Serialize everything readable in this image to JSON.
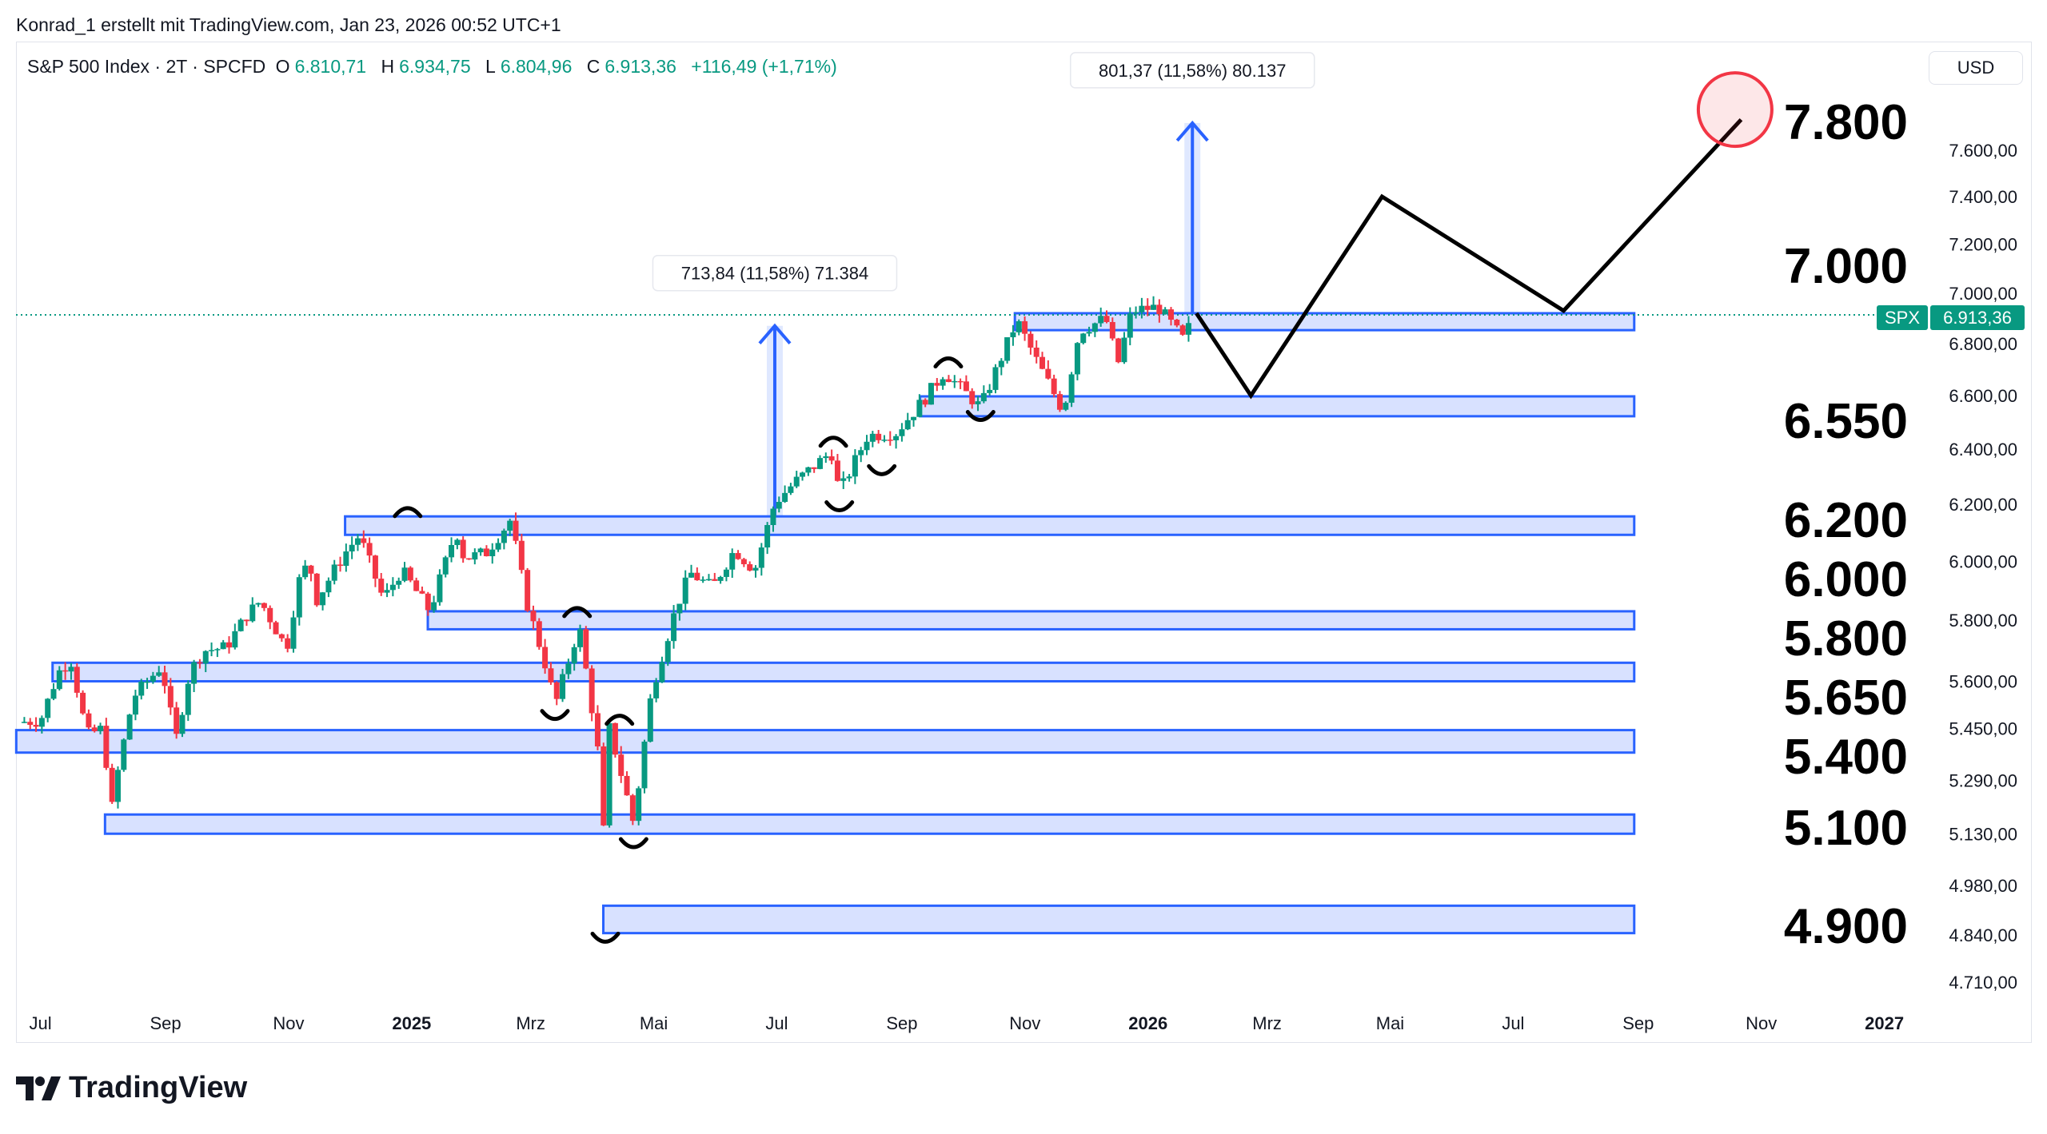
{
  "caption": "Konrad_1 erstellt mit TradingView.com, Jan 23, 2026 00:52 UTC+1",
  "legend": {
    "symbol": "S&P 500 Index · 2T · SPCFD",
    "open_label": "O",
    "open": "6.810,71",
    "high_label": "H",
    "high": "6.934,75",
    "low_label": "L",
    "low": "6.804,96",
    "close_label": "C",
    "close": "6.913,36",
    "change": "+116,49 (+1,71%)"
  },
  "currency": "USD",
  "brand": "TradingView",
  "colors": {
    "up": "#089981",
    "down": "#f23645",
    "zone_border": "#2962ff",
    "zone_fill": "#d1dcff",
    "projection": "#000000",
    "target_circle": "#f23645"
  },
  "chart_data": {
    "type": "candlestick",
    "interval": "2T",
    "y_scale": "log",
    "ylim": [
      4650,
      7900
    ],
    "x_range": [
      "2024-06-19",
      "2027-01-20"
    ],
    "grid": false,
    "y_ticks": [
      "7.600,00",
      "7.400,00",
      "7.200,00",
      "7.000,00",
      "6.800,00",
      "6.600,00",
      "6.400,00",
      "6.200,00",
      "6.000,00",
      "5.800,00",
      "5.600,00",
      "5.450,00",
      "5.290,00",
      "5.130,00",
      "4.980,00",
      "4.840,00",
      "4.710,00"
    ],
    "y_tick_values": [
      7600,
      7400,
      7200,
      7000,
      6800,
      6600,
      6400,
      6200,
      6000,
      5800,
      5600,
      5450,
      5290,
      5130,
      4980,
      4840,
      4710
    ],
    "x_ticks": [
      {
        "label": "Jul",
        "date": "2024-07-01",
        "bold": false
      },
      {
        "label": "Sep",
        "date": "2024-09-01",
        "bold": false
      },
      {
        "label": "Nov",
        "date": "2024-11-01",
        "bold": false
      },
      {
        "label": "2025",
        "date": "2025-01-01",
        "bold": true
      },
      {
        "label": "Mrz",
        "date": "2025-03-01",
        "bold": false
      },
      {
        "label": "Mai",
        "date": "2025-05-01",
        "bold": false
      },
      {
        "label": "Jul",
        "date": "2025-07-01",
        "bold": false
      },
      {
        "label": "Sep",
        "date": "2025-09-01",
        "bold": false
      },
      {
        "label": "Nov",
        "date": "2025-11-01",
        "bold": false
      },
      {
        "label": "2026",
        "date": "2026-01-01",
        "bold": true
      },
      {
        "label": "Mrz",
        "date": "2026-03-01",
        "bold": false
      },
      {
        "label": "Mai",
        "date": "2026-05-01",
        "bold": false
      },
      {
        "label": "Jul",
        "date": "2026-07-01",
        "bold": false
      },
      {
        "label": "Sep",
        "date": "2026-09-01",
        "bold": false
      },
      {
        "label": "Nov",
        "date": "2026-11-01",
        "bold": false
      },
      {
        "label": "2027",
        "date": "2027-01-01",
        "bold": true
      }
    ],
    "price_path": [
      [
        "2024-06-20",
        5470
      ],
      [
        "2024-07-01",
        5475
      ],
      [
        "2024-07-10",
        5630
      ],
      [
        "2024-07-16",
        5670
      ],
      [
        "2024-07-24",
        5430
      ],
      [
        "2024-08-01",
        5450
      ],
      [
        "2024-08-05",
        5190
      ],
      [
        "2024-08-09",
        5340
      ],
      [
        "2024-08-16",
        5550
      ],
      [
        "2024-08-30",
        5650
      ],
      [
        "2024-09-06",
        5410
      ],
      [
        "2024-09-13",
        5630
      ],
      [
        "2024-09-20",
        5700
      ],
      [
        "2024-10-01",
        5710
      ],
      [
        "2024-10-11",
        5815
      ],
      [
        "2024-10-18",
        5865
      ],
      [
        "2024-10-31",
        5705
      ],
      [
        "2024-11-06",
        5930
      ],
      [
        "2024-11-11",
        6000
      ],
      [
        "2024-11-15",
        5870
      ],
      [
        "2024-11-29",
        6030
      ],
      [
        "2024-12-06",
        6090
      ],
      [
        "2024-12-18",
        5870
      ],
      [
        "2024-12-27",
        5970
      ],
      [
        "2025-01-10",
        5830
      ],
      [
        "2025-01-23",
        6110
      ],
      [
        "2025-01-27",
        6010
      ],
      [
        "2025-02-07",
        6030
      ],
      [
        "2025-02-19",
        6145
      ],
      [
        "2025-02-27",
        5860
      ],
      [
        "2025-03-10",
        5615
      ],
      [
        "2025-03-13",
        5520
      ],
      [
        "2025-03-25",
        5780
      ],
      [
        "2025-04-03",
        5400
      ],
      [
        "2025-04-08",
        4980
      ],
      [
        "2025-04-09",
        5450
      ],
      [
        "2025-04-21",
        5160
      ],
      [
        "2025-04-30",
        5570
      ],
      [
        "2025-05-12",
        5840
      ],
      [
        "2025-05-19",
        5960
      ],
      [
        "2025-05-30",
        5910
      ],
      [
        "2025-06-10",
        6040
      ],
      [
        "2025-06-20",
        5970
      ],
      [
        "2025-06-30",
        6205
      ],
      [
        "2025-07-10",
        6280
      ],
      [
        "2025-07-28",
        6390
      ],
      [
        "2025-08-01",
        6240
      ],
      [
        "2025-08-15",
        6450
      ],
      [
        "2025-08-29",
        6460
      ],
      [
        "2025-09-12",
        6585
      ],
      [
        "2025-09-22",
        6690
      ],
      [
        "2025-10-10",
        6555
      ],
      [
        "2025-10-28",
        6890
      ],
      [
        "2025-11-07",
        6730
      ],
      [
        "2025-11-20",
        6540
      ],
      [
        "2025-11-28",
        6850
      ],
      [
        "2025-12-11",
        6900
      ],
      [
        "2025-12-17",
        6720
      ],
      [
        "2025-12-24",
        6930
      ],
      [
        "2026-01-06",
        6945
      ],
      [
        "2026-01-20",
        6800
      ],
      [
        "2026-01-22",
        6913
      ]
    ],
    "last_price": {
      "symbol": "SPX",
      "value": 6913.36,
      "label": "6.913,36"
    },
    "zones": [
      {
        "from": "2025-10-27",
        "to": "2026-08-30",
        "top": 6920,
        "bottom": 6853
      },
      {
        "from": "2025-09-10",
        "to": "2026-08-30",
        "top": 6597,
        "bottom": 6522
      },
      {
        "from": "2024-11-29",
        "to": "2026-08-30",
        "top": 6157,
        "bottom": 6092
      },
      {
        "from": "2025-01-09",
        "to": "2026-08-30",
        "top": 5830,
        "bottom": 5770
      },
      {
        "from": "2024-07-07",
        "to": "2026-08-30",
        "top": 5660,
        "bottom": 5600
      },
      {
        "from": "2024-06-19",
        "to": "2026-08-30",
        "top": 5445,
        "bottom": 5375
      },
      {
        "from": "2024-08-02",
        "to": "2026-08-30",
        "top": 5187,
        "bottom": 5130
      },
      {
        "from": "2025-04-06",
        "to": "2026-08-30",
        "top": 4922,
        "bottom": 4845
      }
    ],
    "measures": [
      {
        "date": "2025-06-30",
        "from": 6157,
        "to": 6870,
        "label": "713,84 (11,58%) 71.384"
      },
      {
        "date": "2026-01-23",
        "from": 6920,
        "to": 7720,
        "label": "801,37 (11,58%) 80.137"
      }
    ],
    "projection": [
      [
        "2026-01-25",
        6920
      ],
      [
        "2026-02-21",
        6600
      ],
      [
        "2026-04-27",
        7400
      ],
      [
        "2026-07-26",
        6930
      ],
      [
        "2026-10-22",
        7735
      ]
    ],
    "target": {
      "date": "2026-10-19",
      "price": 7780
    },
    "level_labels": [
      "7.800",
      "7.000",
      "6.550",
      "6.200",
      "6.000",
      "5.800",
      "5.650",
      "5.400",
      "5.100",
      "4.900"
    ],
    "swing_marks": [
      {
        "date": "2024-12-30",
        "price": 6175,
        "dir": "top"
      },
      {
        "date": "2025-03-13",
        "price": 5490,
        "dir": "bottom"
      },
      {
        "date": "2025-03-24",
        "price": 5830,
        "dir": "top"
      },
      {
        "date": "2025-04-07",
        "price": 4830,
        "dir": "bottom"
      },
      {
        "date": "2025-04-14",
        "price": 5480,
        "dir": "top"
      },
      {
        "date": "2025-04-21",
        "price": 5100,
        "dir": "bottom"
      },
      {
        "date": "2025-07-29",
        "price": 6430,
        "dir": "top"
      },
      {
        "date": "2025-08-01",
        "price": 6190,
        "dir": "bottom"
      },
      {
        "date": "2025-08-22",
        "price": 6320,
        "dir": "bottom"
      },
      {
        "date": "2025-09-24",
        "price": 6730,
        "dir": "top"
      },
      {
        "date": "2025-10-10",
        "price": 6520,
        "dir": "bottom"
      }
    ]
  }
}
